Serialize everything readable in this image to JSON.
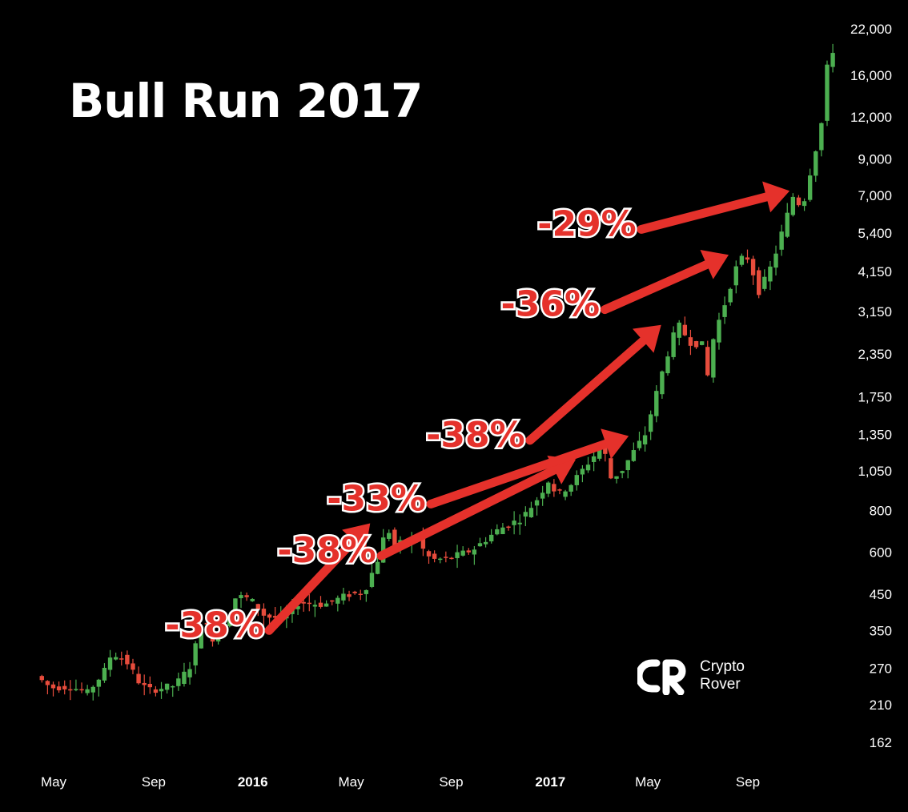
{
  "title": "Bull Run 2017",
  "logo": {
    "line1": "Crypto",
    "line2": "Rover"
  },
  "colors": {
    "background": "#000000",
    "up": "#4caf50",
    "down": "#e74c3c",
    "annotation": "#e5312b",
    "text": "#ffffff"
  },
  "chart_data": {
    "type": "candlestick",
    "title": "Bull Run 2017",
    "y_scale": "log",
    "ylim": [
      145,
      24000
    ],
    "y_ticks": [
      "22,000",
      "16,000",
      "12,000",
      "9,000",
      "7,000",
      "5,400",
      "4,150",
      "3,150",
      "2,350",
      "1,750",
      "1,350",
      "1,050",
      "800",
      "600",
      "450",
      "350",
      "270",
      "210",
      "162"
    ],
    "x_ticks": [
      {
        "label": "May",
        "date": "2015-05-01",
        "bold": false
      },
      {
        "label": "Sep",
        "date": "2015-09-01",
        "bold": false
      },
      {
        "label": "2016",
        "date": "2016-01-01",
        "bold": true
      },
      {
        "label": "May",
        "date": "2016-05-01",
        "bold": false
      },
      {
        "label": "Sep",
        "date": "2016-09-01",
        "bold": false
      },
      {
        "label": "2017",
        "date": "2017-01-01",
        "bold": true
      },
      {
        "label": "May",
        "date": "2017-05-01",
        "bold": false
      },
      {
        "label": "Sep",
        "date": "2017-09-01",
        "bold": false
      }
    ],
    "grid": false,
    "price_path": [
      [
        "2015-04-13",
        256
      ],
      [
        "2015-05-01",
        236
      ],
      [
        "2015-05-25",
        238
      ],
      [
        "2015-06-15",
        228
      ],
      [
        "2015-07-05",
        262
      ],
      [
        "2015-07-15",
        300
      ],
      [
        "2015-08-01",
        285
      ],
      [
        "2015-08-20",
        240
      ],
      [
        "2015-09-01",
        232
      ],
      [
        "2015-10-01",
        240
      ],
      [
        "2015-10-20",
        275
      ],
      [
        "2015-11-04",
        385
      ],
      [
        "2015-11-15",
        330
      ],
      [
        "2015-12-01",
        360
      ],
      [
        "2015-12-15",
        445
      ],
      [
        "2016-01-01",
        435
      ],
      [
        "2016-01-20",
        385
      ],
      [
        "2016-02-10",
        380
      ],
      [
        "2016-03-01",
        425
      ],
      [
        "2016-04-01",
        418
      ],
      [
        "2016-05-01",
        448
      ],
      [
        "2016-05-20",
        455
      ],
      [
        "2016-06-10",
        600
      ],
      [
        "2016-06-17",
        740
      ],
      [
        "2016-06-25",
        620
      ],
      [
        "2016-07-10",
        650
      ],
      [
        "2016-07-25",
        660
      ],
      [
        "2016-08-05",
        585
      ],
      [
        "2016-08-15",
        570
      ],
      [
        "2016-09-01",
        575
      ],
      [
        "2016-10-01",
        610
      ],
      [
        "2016-11-01",
        700
      ],
      [
        "2016-12-01",
        760
      ],
      [
        "2016-12-20",
        870
      ],
      [
        "2017-01-04",
        1000
      ],
      [
        "2017-01-12",
        880
      ],
      [
        "2017-02-01",
        970
      ],
      [
        "2017-02-25",
        1150
      ],
      [
        "2017-03-10",
        1250
      ],
      [
        "2017-03-20",
        1000
      ],
      [
        "2017-04-01",
        1040
      ],
      [
        "2017-04-15",
        1180
      ],
      [
        "2017-05-01",
        1350
      ],
      [
        "2017-05-25",
        2200
      ],
      [
        "2017-06-10",
        2900
      ],
      [
        "2017-06-25",
        2550
      ],
      [
        "2017-07-10",
        2500
      ],
      [
        "2017-07-16",
        1950
      ],
      [
        "2017-07-25",
        2700
      ],
      [
        "2017-08-05",
        3200
      ],
      [
        "2017-08-20",
        4200
      ],
      [
        "2017-09-01",
        4700
      ],
      [
        "2017-09-10",
        4250
      ],
      [
        "2017-09-15",
        3500
      ],
      [
        "2017-09-25",
        3900
      ],
      [
        "2017-10-05",
        4400
      ],
      [
        "2017-10-20",
        5800
      ],
      [
        "2017-11-01",
        7200
      ],
      [
        "2017-11-10",
        6200
      ],
      [
        "2017-11-15",
        7300
      ],
      [
        "2017-11-26",
        9400
      ],
      [
        "2017-12-04",
        11500
      ],
      [
        "2017-12-10",
        16500
      ],
      [
        "2017-12-17",
        19000
      ]
    ],
    "annotations": [
      {
        "label": "-38%",
        "peak_price": 740,
        "text_date": "2015-11-15",
        "text_price": 335
      },
      {
        "label": "-38%",
        "peak_price": 1150,
        "text_date": "2016-04-01",
        "text_price": 560
      },
      {
        "label": "-33%",
        "peak_price": 1350,
        "text_date": "2016-06-01",
        "text_price": 800
      },
      {
        "label": "-38%",
        "peak_price": 2900,
        "text_date": "2016-10-01",
        "text_price": 1240
      },
      {
        "label": "-36%",
        "peak_price": 5000,
        "text_date": "2017-01-01",
        "text_price": 3050
      },
      {
        "label": "-29%",
        "peak_price": 7700,
        "text_date": "2017-02-15",
        "text_price": 5300
      }
    ]
  }
}
